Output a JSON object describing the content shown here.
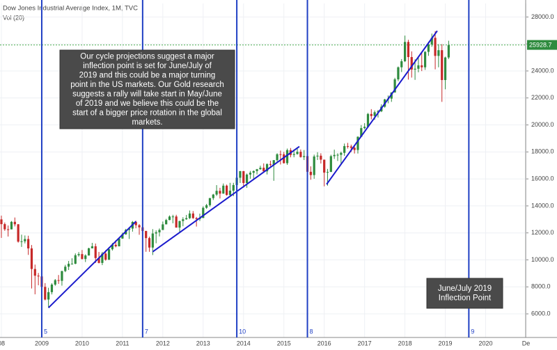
{
  "chart_data": {
    "type": "candlestick",
    "title": "Dow Jones Industrial Average Index, 1M, TVC",
    "subtitle": "Vol (20)",
    "grid": true,
    "up_color": "#2e8b3e",
    "down_color": "#c62828",
    "line_color": "#1f3fc4",
    "last_price": 25928.7,
    "ylim": [
      4250,
      29000
    ],
    "yticks": [
      {
        "value": 6000,
        "label": "6000.0"
      },
      {
        "value": 8000,
        "label": "8000.0"
      },
      {
        "value": 10000,
        "label": "10000.0"
      },
      {
        "value": 12000,
        "label": "12000.0"
      },
      {
        "value": 14000,
        "label": "14000.0"
      },
      {
        "value": 16000,
        "label": "16000.0"
      },
      {
        "value": 18000,
        "label": "18000.0"
      },
      {
        "value": 20000,
        "label": "20000.0"
      },
      {
        "value": 22000,
        "label": "22000.0"
      },
      {
        "value": 24000,
        "label": "24000.0"
      },
      {
        "value": 26000,
        "label": "26000.0"
      },
      {
        "value": 28000,
        "label": "28000.0"
      }
    ],
    "categories": [
      "08",
      null,
      null,
      null,
      null,
      null,
      null,
      null,
      null,
      null,
      null,
      null,
      "2009",
      null,
      null,
      null,
      null,
      null,
      null,
      null,
      null,
      null,
      null,
      null,
      "2010",
      null,
      null,
      null,
      null,
      null,
      null,
      null,
      null,
      null,
      null,
      null,
      "2011",
      null,
      null,
      null,
      null,
      null,
      null,
      null,
      null,
      null,
      null,
      null,
      "2012",
      null,
      null,
      null,
      null,
      null,
      null,
      null,
      null,
      null,
      null,
      null,
      "2013",
      null,
      null,
      null,
      null,
      null,
      null,
      null,
      null,
      null,
      null,
      null,
      "2014",
      null,
      null,
      null,
      null,
      null,
      null,
      null,
      null,
      null,
      null,
      null,
      "2015",
      null,
      null,
      null,
      null,
      null,
      null,
      null,
      null,
      null,
      null,
      null,
      "2016",
      null,
      null,
      null,
      null,
      null,
      null,
      null,
      null,
      null,
      null,
      null,
      "2017",
      null,
      null,
      null,
      null,
      null,
      null,
      null,
      null,
      null,
      null,
      null,
      "2018",
      null,
      null,
      null,
      null,
      null,
      null,
      null,
      null,
      null,
      null,
      null,
      "2019",
      null,
      null,
      null,
      null,
      null,
      null,
      null,
      null,
      null,
      null,
      null,
      "2020",
      null,
      null,
      null,
      null,
      null,
      null,
      null,
      null,
      null,
      null,
      null,
      "De"
    ],
    "ohlc": [
      [
        13000,
        13280,
        11630,
        12650
      ],
      [
        12650,
        12770,
        12150,
        12266
      ],
      [
        12266,
        12550,
        11730,
        12262
      ],
      [
        12262,
        12880,
        12260,
        12820
      ],
      [
        12820,
        13140,
        12480,
        12638
      ],
      [
        12638,
        12650,
        11280,
        11350
      ],
      [
        11350,
        11870,
        10960,
        11378
      ],
      [
        11378,
        11810,
        11220,
        11544
      ],
      [
        11544,
        11790,
        10370,
        10850
      ],
      [
        10850,
        11100,
        7880,
        9325
      ],
      [
        9325,
        9650,
        7450,
        8829
      ],
      [
        8829,
        9030,
        8120,
        8776
      ],
      [
        8776,
        9090,
        7910,
        8001
      ],
      [
        8001,
        8280,
        7000,
        7063
      ],
      [
        7063,
        7930,
        6470,
        7609
      ],
      [
        7609,
        8270,
        7440,
        8168
      ],
      [
        8168,
        8580,
        8080,
        8500
      ],
      [
        8500,
        8880,
        8220,
        8447
      ],
      [
        8447,
        9190,
        8090,
        9172
      ],
      [
        9172,
        9630,
        9090,
        9496
      ],
      [
        9496,
        9920,
        9250,
        9712
      ],
      [
        9712,
        10120,
        9670,
        9713
      ],
      [
        9713,
        10480,
        9680,
        10345
      ],
      [
        10345,
        10580,
        10240,
        10428
      ],
      [
        10428,
        10730,
        10030,
        10067
      ],
      [
        10067,
        10410,
        9840,
        10325
      ],
      [
        10325,
        10900,
        10320,
        10857
      ],
      [
        10857,
        11260,
        10850,
        11009
      ],
      [
        11009,
        11210,
        9770,
        10137
      ],
      [
        10137,
        10590,
        9740,
        9774
      ],
      [
        9774,
        10590,
        9610,
        10466
      ],
      [
        10466,
        10720,
        9940,
        10015
      ],
      [
        10015,
        10950,
        9990,
        10788
      ],
      [
        10788,
        11250,
        10690,
        11118
      ],
      [
        11118,
        11450,
        10930,
        11006
      ],
      [
        11006,
        11640,
        11000,
        11578
      ],
      [
        11578,
        12020,
        11560,
        11892
      ],
      [
        11892,
        12300,
        11870,
        12226
      ],
      [
        12226,
        12420,
        11550,
        12320
      ],
      [
        12320,
        12880,
        12090,
        12811
      ],
      [
        12811,
        12900,
        12340,
        12570
      ],
      [
        12570,
        12650,
        11860,
        12414
      ],
      [
        12414,
        12760,
        12130,
        12143
      ],
      [
        12143,
        12150,
        10600,
        11614
      ],
      [
        11614,
        11720,
        10600,
        10913
      ],
      [
        10913,
        12280,
        10360,
        11955
      ],
      [
        11955,
        12190,
        11230,
        12046
      ],
      [
        12046,
        12330,
        11740,
        12218
      ],
      [
        12218,
        12840,
        12210,
        12633
      ],
      [
        12633,
        13040,
        12630,
        12952
      ],
      [
        12952,
        13290,
        12940,
        13212
      ],
      [
        13212,
        13340,
        12710,
        13214
      ],
      [
        13214,
        13340,
        12390,
        12393
      ],
      [
        12393,
        12900,
        12040,
        12880
      ],
      [
        12880,
        13160,
        12490,
        13009
      ],
      [
        13009,
        13330,
        12970,
        13091
      ],
      [
        13091,
        13660,
        13030,
        13437
      ],
      [
        13437,
        13620,
        13040,
        13096
      ],
      [
        13096,
        13180,
        12470,
        13026
      ],
      [
        13026,
        13430,
        12880,
        13104
      ],
      [
        13104,
        13970,
        13100,
        13861
      ],
      [
        13861,
        14150,
        13780,
        14054
      ],
      [
        14054,
        14590,
        13940,
        14579
      ],
      [
        14579,
        14890,
        14440,
        14840
      ],
      [
        14840,
        15540,
        14740,
        15116
      ],
      [
        15116,
        15340,
        14550,
        14910
      ],
      [
        14910,
        15660,
        14900,
        15500
      ],
      [
        15500,
        15580,
        14760,
        14810
      ],
      [
        14810,
        15710,
        14720,
        15130
      ],
      [
        15130,
        15710,
        14720,
        15546
      ],
      [
        15546,
        16170,
        15450,
        16086
      ],
      [
        16086,
        16590,
        15700,
        16577
      ],
      [
        16577,
        16590,
        15350,
        15699
      ],
      [
        15699,
        16400,
        15340,
        16322
      ],
      [
        16322,
        16590,
        16010,
        16458
      ],
      [
        16458,
        16630,
        16020,
        16581
      ],
      [
        16581,
        16740,
        16330,
        16717
      ],
      [
        16717,
        16980,
        16680,
        16827
      ],
      [
        16827,
        17150,
        16560,
        16563
      ],
      [
        16563,
        17150,
        16330,
        17098
      ],
      [
        17098,
        17350,
        16930,
        17043
      ],
      [
        17043,
        17400,
        15860,
        17391
      ],
      [
        17391,
        17900,
        17280,
        17828
      ],
      [
        17828,
        18100,
        17070,
        17823
      ],
      [
        17823,
        18000,
        17140,
        17165
      ],
      [
        17165,
        18250,
        17040,
        18133
      ],
      [
        18133,
        18290,
        17600,
        17776
      ],
      [
        17776,
        18180,
        17600,
        17841
      ],
      [
        17841,
        18350,
        17800,
        18011
      ],
      [
        18011,
        18180,
        17580,
        17620
      ],
      [
        17620,
        18140,
        17400,
        17690
      ],
      [
        17690,
        17700,
        15370,
        16528
      ],
      [
        16528,
        16930,
        15940,
        16285
      ],
      [
        16285,
        17800,
        16010,
        17664
      ],
      [
        17664,
        17980,
        17400,
        17720
      ],
      [
        17720,
        17900,
        17140,
        17425
      ],
      [
        17425,
        17430,
        15450,
        16466
      ],
      [
        16466,
        16740,
        15500,
        16517
      ],
      [
        16517,
        17790,
        16510,
        17685
      ],
      [
        17685,
        18170,
        17480,
        17774
      ],
      [
        17774,
        17900,
        17330,
        17787
      ],
      [
        17787,
        18020,
        17060,
        17930
      ],
      [
        17930,
        18620,
        17710,
        18432
      ],
      [
        18432,
        18670,
        18250,
        18401
      ],
      [
        18401,
        18540,
        17990,
        18308
      ],
      [
        18308,
        18400,
        17880,
        18142
      ],
      [
        18142,
        19150,
        17880,
        19124
      ],
      [
        19124,
        19990,
        19120,
        19763
      ],
      [
        19763,
        20130,
        19680,
        19864
      ],
      [
        19864,
        20890,
        19830,
        20812
      ],
      [
        20812,
        21170,
        20410,
        20663
      ],
      [
        20663,
        21070,
        20380,
        20941
      ],
      [
        20941,
        21110,
        20550,
        21009
      ],
      [
        21009,
        21530,
        20950,
        21350
      ],
      [
        21350,
        21930,
        21280,
        21891
      ],
      [
        21891,
        22180,
        21600,
        21948
      ],
      [
        21948,
        22420,
        21710,
        22405
      ],
      [
        22405,
        23490,
        22400,
        23377
      ],
      [
        23377,
        24330,
        23240,
        24272
      ],
      [
        24272,
        24880,
        23920,
        24719
      ],
      [
        24719,
        26620,
        24660,
        26149
      ],
      [
        26149,
        26310,
        23360,
        25029
      ],
      [
        25029,
        25450,
        23510,
        24103
      ],
      [
        24103,
        24860,
        23340,
        24163
      ],
      [
        24163,
        25090,
        23900,
        24416
      ],
      [
        24416,
        25400,
        23990,
        24271
      ],
      [
        24271,
        25470,
        24080,
        25415
      ],
      [
        25415,
        26170,
        25120,
        25965
      ],
      [
        25965,
        26770,
        25790,
        26458
      ],
      [
        26458,
        26950,
        24120,
        25116
      ],
      [
        25116,
        25980,
        24270,
        25538
      ],
      [
        25538,
        25980,
        21710,
        23327
      ],
      [
        23327,
        25060,
        22640,
        24999
      ],
      [
        24999,
        26240,
        24880,
        25916
      ],
      null,
      null,
      null,
      null,
      null,
      null,
      null,
      null,
      null,
      null,
      null,
      null,
      null,
      null,
      null,
      null,
      null,
      null,
      null,
      null,
      null,
      null,
      null
    ],
    "cycle_lines": [
      {
        "index": 12,
        "label": "5"
      },
      {
        "index": 42,
        "label": "7"
      },
      {
        "index": 70,
        "label": "10"
      },
      {
        "index": 91,
        "label": "8"
      },
      {
        "index": 139,
        "label": "9"
      }
    ],
    "trend_lines": [
      {
        "start": [
          14,
          6450
        ],
        "end": [
          40,
          12850
        ]
      },
      {
        "start": [
          45,
          10600
        ],
        "end": [
          88.6,
          18400
        ]
      },
      {
        "start": [
          96.7,
          15600
        ],
        "end": [
          129.6,
          26970
        ]
      }
    ],
    "annotations": [
      {
        "lines": [
          "Our cycle projections suggest a major",
          "inflection point is set for June/July of",
          "2019 and this could be a major turning",
          "point in the US markets.  Our Gold research",
          "suggests a rally will take start in May/June",
          "of 2019 and we believe this could be the",
          "start of a bigger price rotation in the global",
          "markets."
        ]
      },
      {
        "lines": [
          "June/July 2019",
          "Inflection Point"
        ]
      }
    ]
  }
}
